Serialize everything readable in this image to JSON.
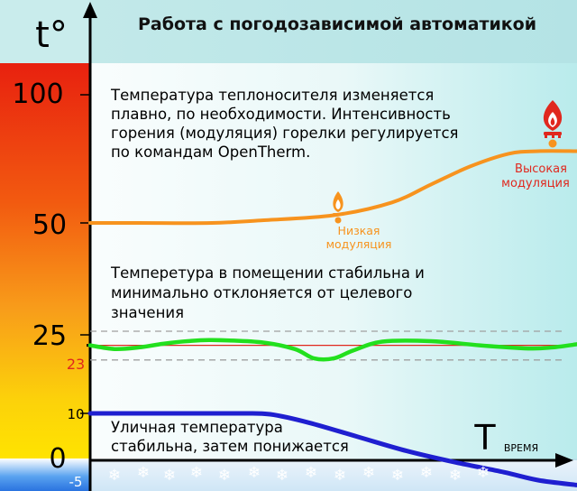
{
  "title": "Работа с погодозависимой автоматикой",
  "axis": {
    "y_label": "t°",
    "x_label": "T",
    "x_sub": "ВРЕМЯ",
    "ticks": [
      "100",
      "50",
      "25",
      "23",
      "10",
      "0",
      "-5"
    ]
  },
  "notes": {
    "coolant": [
      "Температура теплоносителя изменяется",
      "плавно, по необходимости. Интенсивность",
      "горения (модуляция) горелки регулируется",
      "по командам OpenTherm."
    ],
    "room": [
      "Темперетура в помещении стабильна и",
      "минимально отклоняется от целевого",
      "значения"
    ],
    "outdoor": [
      "Уличная температура",
      "стабильна, затем понижается"
    ]
  },
  "markers": {
    "low": [
      "Низкая",
      "модуляция"
    ],
    "high": [
      "Высокая",
      "модуляция"
    ]
  },
  "colors": {
    "coolant": "#f7931e",
    "room": "#22e01e",
    "outdoor": "#1f1fd0",
    "target": "#e0281e",
    "high_label": "#e0281e",
    "low_label": "#f7931e"
  },
  "chart_data": {
    "type": "line",
    "title": "Работа с погодозависимой автоматикой",
    "xlabel": "TВРЕМЯ",
    "ylabel": "t°",
    "yticks": [
      100,
      50,
      25,
      23,
      10,
      0,
      -5
    ],
    "series": [
      {
        "key": "coolant",
        "points": [
          [
            0,
            50
          ],
          [
            10,
            50
          ],
          [
            25,
            50
          ],
          [
            35,
            51
          ],
          [
            50,
            53
          ],
          [
            62,
            58
          ],
          [
            70,
            65
          ],
          [
            78,
            72
          ],
          [
            86,
            77
          ],
          [
            92,
            78
          ],
          [
            100,
            78
          ]
        ]
      },
      {
        "key": "room",
        "points": [
          [
            0,
            23
          ],
          [
            5,
            22.3
          ],
          [
            10,
            22.6
          ],
          [
            15,
            23.3
          ],
          [
            20,
            23.8
          ],
          [
            25,
            24
          ],
          [
            35,
            23.6
          ],
          [
            42,
            22.3
          ],
          [
            46,
            20.5
          ],
          [
            50,
            20.5
          ],
          [
            54,
            22
          ],
          [
            60,
            23.7
          ],
          [
            70,
            23.8
          ],
          [
            80,
            23
          ],
          [
            90,
            22.4
          ],
          [
            95,
            22.6
          ],
          [
            100,
            23.2
          ]
        ]
      },
      {
        "key": "outdoor",
        "points": [
          [
            0,
            10
          ],
          [
            15,
            10
          ],
          [
            30,
            10
          ],
          [
            37,
            9.8
          ],
          [
            45,
            8
          ],
          [
            55,
            5
          ],
          [
            65,
            2
          ],
          [
            75,
            -0.5
          ],
          [
            85,
            -3
          ],
          [
            92,
            -5
          ],
          [
            100,
            -6.5
          ]
        ]
      }
    ],
    "reference_lines": [
      {
        "key": "target",
        "y": 23
      },
      {
        "key": "band_high",
        "y": 25.8
      },
      {
        "key": "band_low",
        "y": 20.2
      }
    ]
  }
}
